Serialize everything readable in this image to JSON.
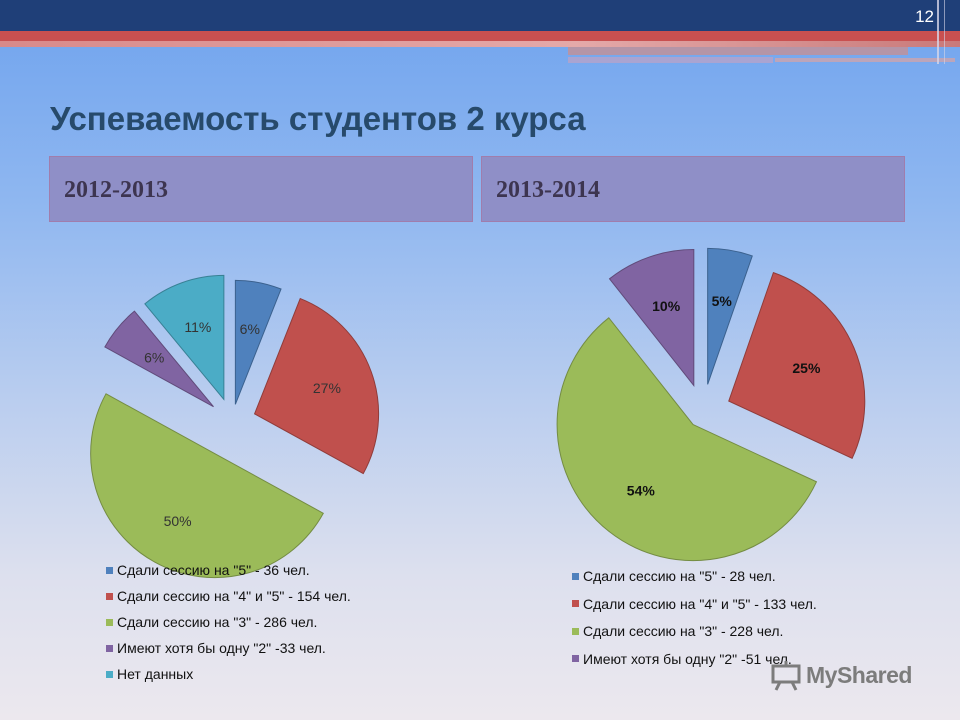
{
  "slide_number": "12",
  "title": "Успеваемость студентов 2 курса",
  "watermark": "MyShared",
  "chart_data": [
    {
      "type": "pie",
      "title": "2012-2013",
      "labels": [
        "6%",
        "27%",
        "50%",
        "6%",
        "11%"
      ],
      "values": [
        6,
        27,
        50,
        6,
        11
      ],
      "legend_position": "bottom",
      "legend": [
        "Сдали сессию на \"5\" - 36 чел.",
        "Сдали сессию на \"4\" и \"5\" - 154 чел.",
        "Сдали сессию на \"3\" - 286 чел.",
        "Имеют хотя бы одну \"2\" -33 чел.",
        "Нет данных"
      ],
      "colors": [
        "#4f81bd",
        "#c0504d",
        "#9bbb59",
        "#8064a2",
        "#4bacc6"
      ]
    },
    {
      "type": "pie",
      "title": "2013-2014",
      "labels": [
        "5%",
        "25%",
        "54%",
        "10%"
      ],
      "values": [
        5,
        25,
        54,
        10
      ],
      "legend_position": "bottom",
      "legend": [
        "Сдали сессию на \"5\" - 28 чел.",
        "Сдали сессию на \"4\" и \"5\" - 133 чел.",
        "Сдали сессию на \"3\" - 228 чел.",
        "Имеют хотя бы одну \"2\" -51 чел."
      ],
      "colors": [
        "#4f81bd",
        "#c0504d",
        "#9bbb59",
        "#8064a2"
      ]
    }
  ]
}
